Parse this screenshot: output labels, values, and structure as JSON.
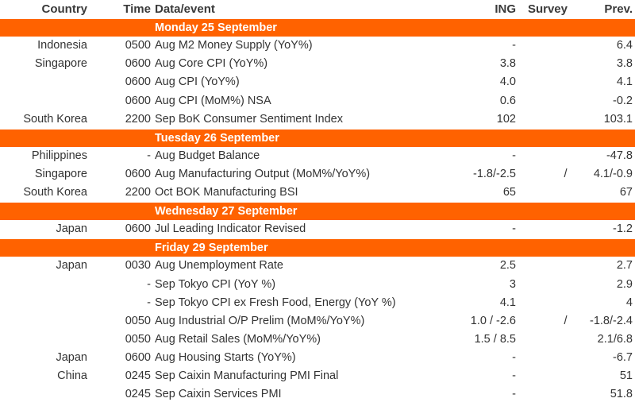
{
  "header": {
    "country": "Country",
    "time": "Time",
    "event": "Data/event",
    "ing": "ING",
    "survey": "Survey",
    "prev": "Prev."
  },
  "sections": [
    {
      "date": "Monday 25 September",
      "rows": [
        {
          "country": "Indonesia",
          "time": "0500",
          "event": "Aug M2 Money Supply (YoY%)",
          "ing": "-",
          "prev": "6.4"
        },
        {
          "country": "Singapore",
          "time": "0600",
          "event": "Aug Core CPI (YoY%)",
          "ing": "3.8",
          "prev": "3.8"
        },
        {
          "time": "0600",
          "event": "Aug CPI (YoY%)",
          "ing": "4.0",
          "prev": "4.1"
        },
        {
          "time": "0600",
          "event": "Aug CPI (MoM%) NSA",
          "ing": "0.6",
          "prev": "-0.2"
        },
        {
          "country": "South Korea",
          "time": "2200",
          "event": "Sep BoK Consumer Sentiment Index",
          "ing": "102",
          "prev": "103.1"
        }
      ]
    },
    {
      "date": "Tuesday 26 September",
      "rows": [
        {
          "country": "Philippines",
          "time": "-",
          "event": "Aug Budget Balance",
          "ing": "-",
          "prev": "-47.8"
        },
        {
          "country": "Singapore",
          "time": "0600",
          "event": "Aug Manufacturing Output (MoM%/YoY%)",
          "ing": "-1.8/-2.5",
          "survey": "/",
          "prev": "4.1/-0.9"
        },
        {
          "country": "South Korea",
          "time": "2200",
          "event": "Oct BOK Manufacturing BSI",
          "ing": "65",
          "prev": "67"
        }
      ]
    },
    {
      "date": "Wednesday 27 September",
      "rows": [
        {
          "country": "Japan",
          "time": "0600",
          "event": "Jul Leading Indicator Revised",
          "ing": "-",
          "prev": "-1.2"
        }
      ]
    },
    {
      "date": "Friday 29 September",
      "rows": [
        {
          "country": "Japan",
          "time": "0030",
          "event": "Aug Unemployment Rate",
          "ing": "2.5",
          "prev": "2.7"
        },
        {
          "time": "-",
          "event": "Sep Tokyo CPI (YoY %)",
          "ing": "3",
          "prev": "2.9"
        },
        {
          "time": "-",
          "event": "Sep Tokyo CPI ex Fresh Food, Energy (YoY %)",
          "ing": "4.1",
          "prev": "4"
        },
        {
          "time": "0050",
          "event": "Aug Industrial O/P Prelim (MoM%/YoY%)",
          "ing": "1.0 / -2.6",
          "survey": "/",
          "prev": "-1.8/-2.4"
        },
        {
          "time": "0050",
          "event": "Aug Retail Sales (MoM%/YoY%)",
          "ing": "1.5 / 8.5",
          "prev": "2.1/6.8"
        },
        {
          "country": "Japan",
          "time": "0600",
          "event": "Aug Housing Starts (YoY%)",
          "ing": "-",
          "prev": "-6.7"
        },
        {
          "country": "China",
          "time": "0245",
          "event": "Sep Caixin Manufacturing PMI Final",
          "ing": "-",
          "prev": "51"
        },
        {
          "time": "0245",
          "event": "Sep Caixin Services PMI",
          "ing": "-",
          "prev": "51.8"
        }
      ]
    }
  ]
}
